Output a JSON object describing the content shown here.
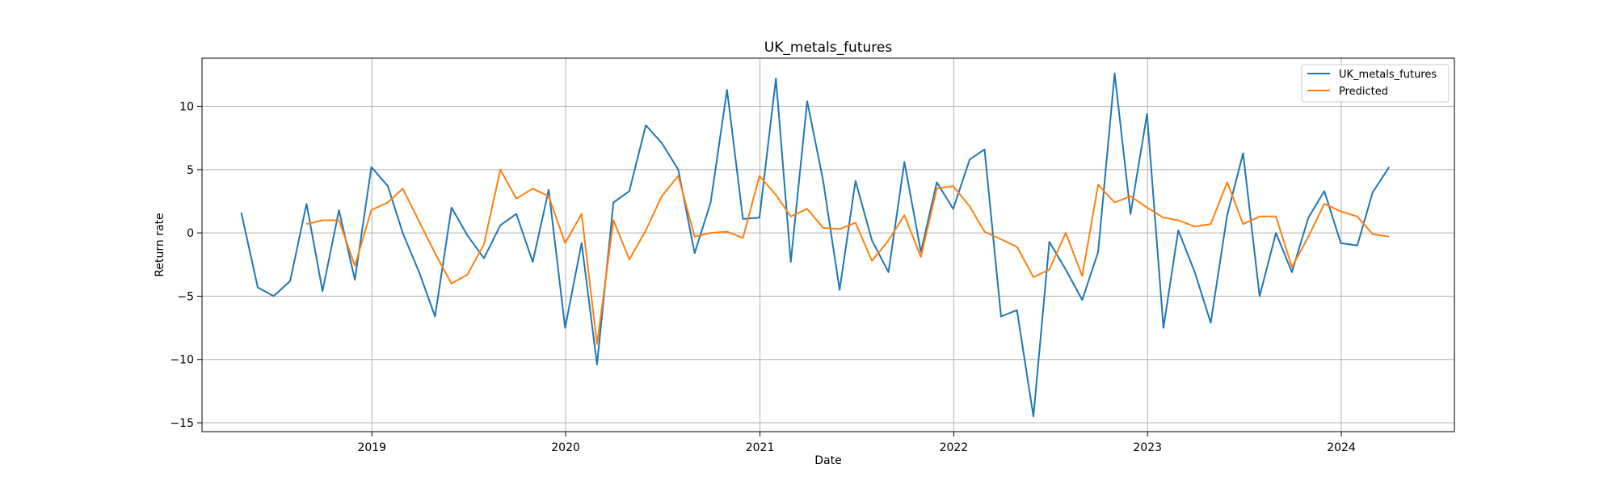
{
  "chart_data": {
    "type": "line",
    "title": "UK_metals_futures",
    "xlabel": "Date",
    "ylabel": "Return rate",
    "x_tick_labels": [
      "2019",
      "2020",
      "2021",
      "2022",
      "2023",
      "2024"
    ],
    "y_tick_labels": [
      "10",
      "5",
      "0",
      "−5",
      "−10",
      "−15"
    ],
    "y_ticks": [
      10,
      5,
      0,
      -5,
      -10,
      -15
    ],
    "ylim": [
      -15.7,
      13.8
    ],
    "xlim": [
      "2018-02-15",
      "2024-08-01"
    ],
    "grid": true,
    "legend_position": "top-right",
    "series": [
      {
        "name": "UK_metals_futures",
        "color": "#1f77b4",
        "dates": [
          "2018-04-30",
          "2018-05-31",
          "2018-06-30",
          "2018-07-31",
          "2018-08-31",
          "2018-09-30",
          "2018-10-31",
          "2018-11-30",
          "2018-12-31",
          "2019-01-31",
          "2019-02-28",
          "2019-03-31",
          "2019-04-30",
          "2019-05-31",
          "2019-06-30",
          "2019-07-31",
          "2019-08-31",
          "2019-09-30",
          "2019-10-31",
          "2019-11-30",
          "2019-12-31",
          "2020-01-31",
          "2020-02-29",
          "2020-03-31",
          "2020-04-30",
          "2020-05-31",
          "2020-06-30",
          "2020-07-31",
          "2020-08-31",
          "2020-09-30",
          "2020-10-31",
          "2020-11-30",
          "2020-12-31",
          "2021-01-31",
          "2021-02-28",
          "2021-03-31",
          "2021-04-30",
          "2021-05-31",
          "2021-06-30",
          "2021-07-31",
          "2021-08-31",
          "2021-09-30",
          "2021-10-31",
          "2021-11-30",
          "2021-12-31",
          "2022-01-31",
          "2022-02-28",
          "2022-03-31",
          "2022-04-30",
          "2022-05-31",
          "2022-06-30",
          "2022-07-31",
          "2022-08-31",
          "2022-09-30",
          "2022-10-31",
          "2022-11-30",
          "2022-12-31",
          "2023-01-31",
          "2023-02-28",
          "2023-03-31",
          "2023-04-30",
          "2023-05-31",
          "2023-06-30",
          "2023-07-31",
          "2023-08-31",
          "2023-09-30",
          "2023-10-31",
          "2023-11-30",
          "2023-12-31",
          "2024-01-31",
          "2024-02-29",
          "2024-03-31"
        ],
        "values": [
          1.6,
          -4.3,
          -5.0,
          -3.8,
          2.3,
          -4.6,
          1.8,
          -3.7,
          5.2,
          3.7,
          0.0,
          -3.1,
          -6.6,
          2.0,
          -0.2,
          -2.0,
          0.6,
          1.5,
          -2.3,
          3.4,
          -7.5,
          -0.8,
          -10.4,
          2.4,
          3.3,
          8.5,
          7.1,
          5.0,
          -1.6,
          2.4,
          11.3,
          1.1,
          1.2,
          12.2,
          -2.3,
          10.4,
          4.1,
          -4.5,
          4.1,
          -0.6,
          -3.1,
          5.6,
          -1.5,
          4.0,
          1.9,
          5.8,
          6.6,
          -6.6,
          -6.1,
          -14.5,
          -0.7,
          -2.9,
          -5.3,
          -1.5,
          12.6,
          1.5,
          9.4,
          -7.5,
          0.2,
          -3.1,
          -7.1,
          1.4,
          6.3,
          -5.0,
          0.0,
          -3.1,
          1.2,
          3.3,
          -0.8,
          -1.0,
          3.2,
          5.2
        ]
      },
      {
        "name": "Predicted",
        "color": "#ff7f0e",
        "dates": [
          "2018-08-31",
          "2018-09-30",
          "2018-10-31",
          "2018-11-30",
          "2018-12-31",
          "2019-01-31",
          "2019-02-28",
          "2019-03-31",
          "2019-04-30",
          "2019-05-31",
          "2019-06-30",
          "2019-07-31",
          "2019-08-31",
          "2019-09-30",
          "2019-10-31",
          "2019-11-30",
          "2019-12-31",
          "2020-01-31",
          "2020-02-29",
          "2020-03-31",
          "2020-04-30",
          "2020-05-31",
          "2020-06-30",
          "2020-07-31",
          "2020-08-31",
          "2020-09-30",
          "2020-10-31",
          "2020-11-30",
          "2020-12-31",
          "2021-01-31",
          "2021-02-28",
          "2021-03-31",
          "2021-04-30",
          "2021-05-31",
          "2021-06-30",
          "2021-07-31",
          "2021-08-31",
          "2021-09-30",
          "2021-10-31",
          "2021-11-30",
          "2021-12-31",
          "2022-01-31",
          "2022-02-28",
          "2022-03-31",
          "2022-04-30",
          "2022-05-31",
          "2022-06-30",
          "2022-07-31",
          "2022-08-31",
          "2022-09-30",
          "2022-10-31",
          "2022-11-30",
          "2022-12-31",
          "2023-01-31",
          "2023-02-28",
          "2023-03-31",
          "2023-04-30",
          "2023-05-31",
          "2023-06-30",
          "2023-07-31",
          "2023-08-31",
          "2023-09-30",
          "2023-10-31",
          "2023-11-30",
          "2023-12-31",
          "2024-01-31",
          "2024-02-29",
          "2024-03-31"
        ],
        "values": [
          0.7,
          1.0,
          1.0,
          -2.6,
          1.8,
          2.4,
          3.5,
          0.9,
          -1.6,
          -4.0,
          -3.3,
          -0.9,
          5.0,
          2.7,
          3.5,
          2.9,
          -0.8,
          1.5,
          -8.8,
          1.0,
          -2.1,
          0.2,
          2.9,
          4.5,
          -0.3,
          0.0,
          0.1,
          -0.4,
          4.5,
          3.0,
          1.3,
          1.9,
          0.4,
          0.3,
          0.8,
          -2.2,
          -0.6,
          1.4,
          -1.9,
          3.5,
          3.7,
          2.1,
          0.1,
          -0.5,
          -1.1,
          -3.5,
          -2.9,
          0.0,
          -3.4,
          3.8,
          2.4,
          2.9,
          2.0,
          1.2,
          1.0,
          0.5,
          0.7,
          4.0,
          0.7,
          1.3,
          1.3,
          -2.7,
          -0.3,
          2.3,
          1.7,
          1.3,
          -0.1,
          -0.3
        ]
      }
    ]
  }
}
